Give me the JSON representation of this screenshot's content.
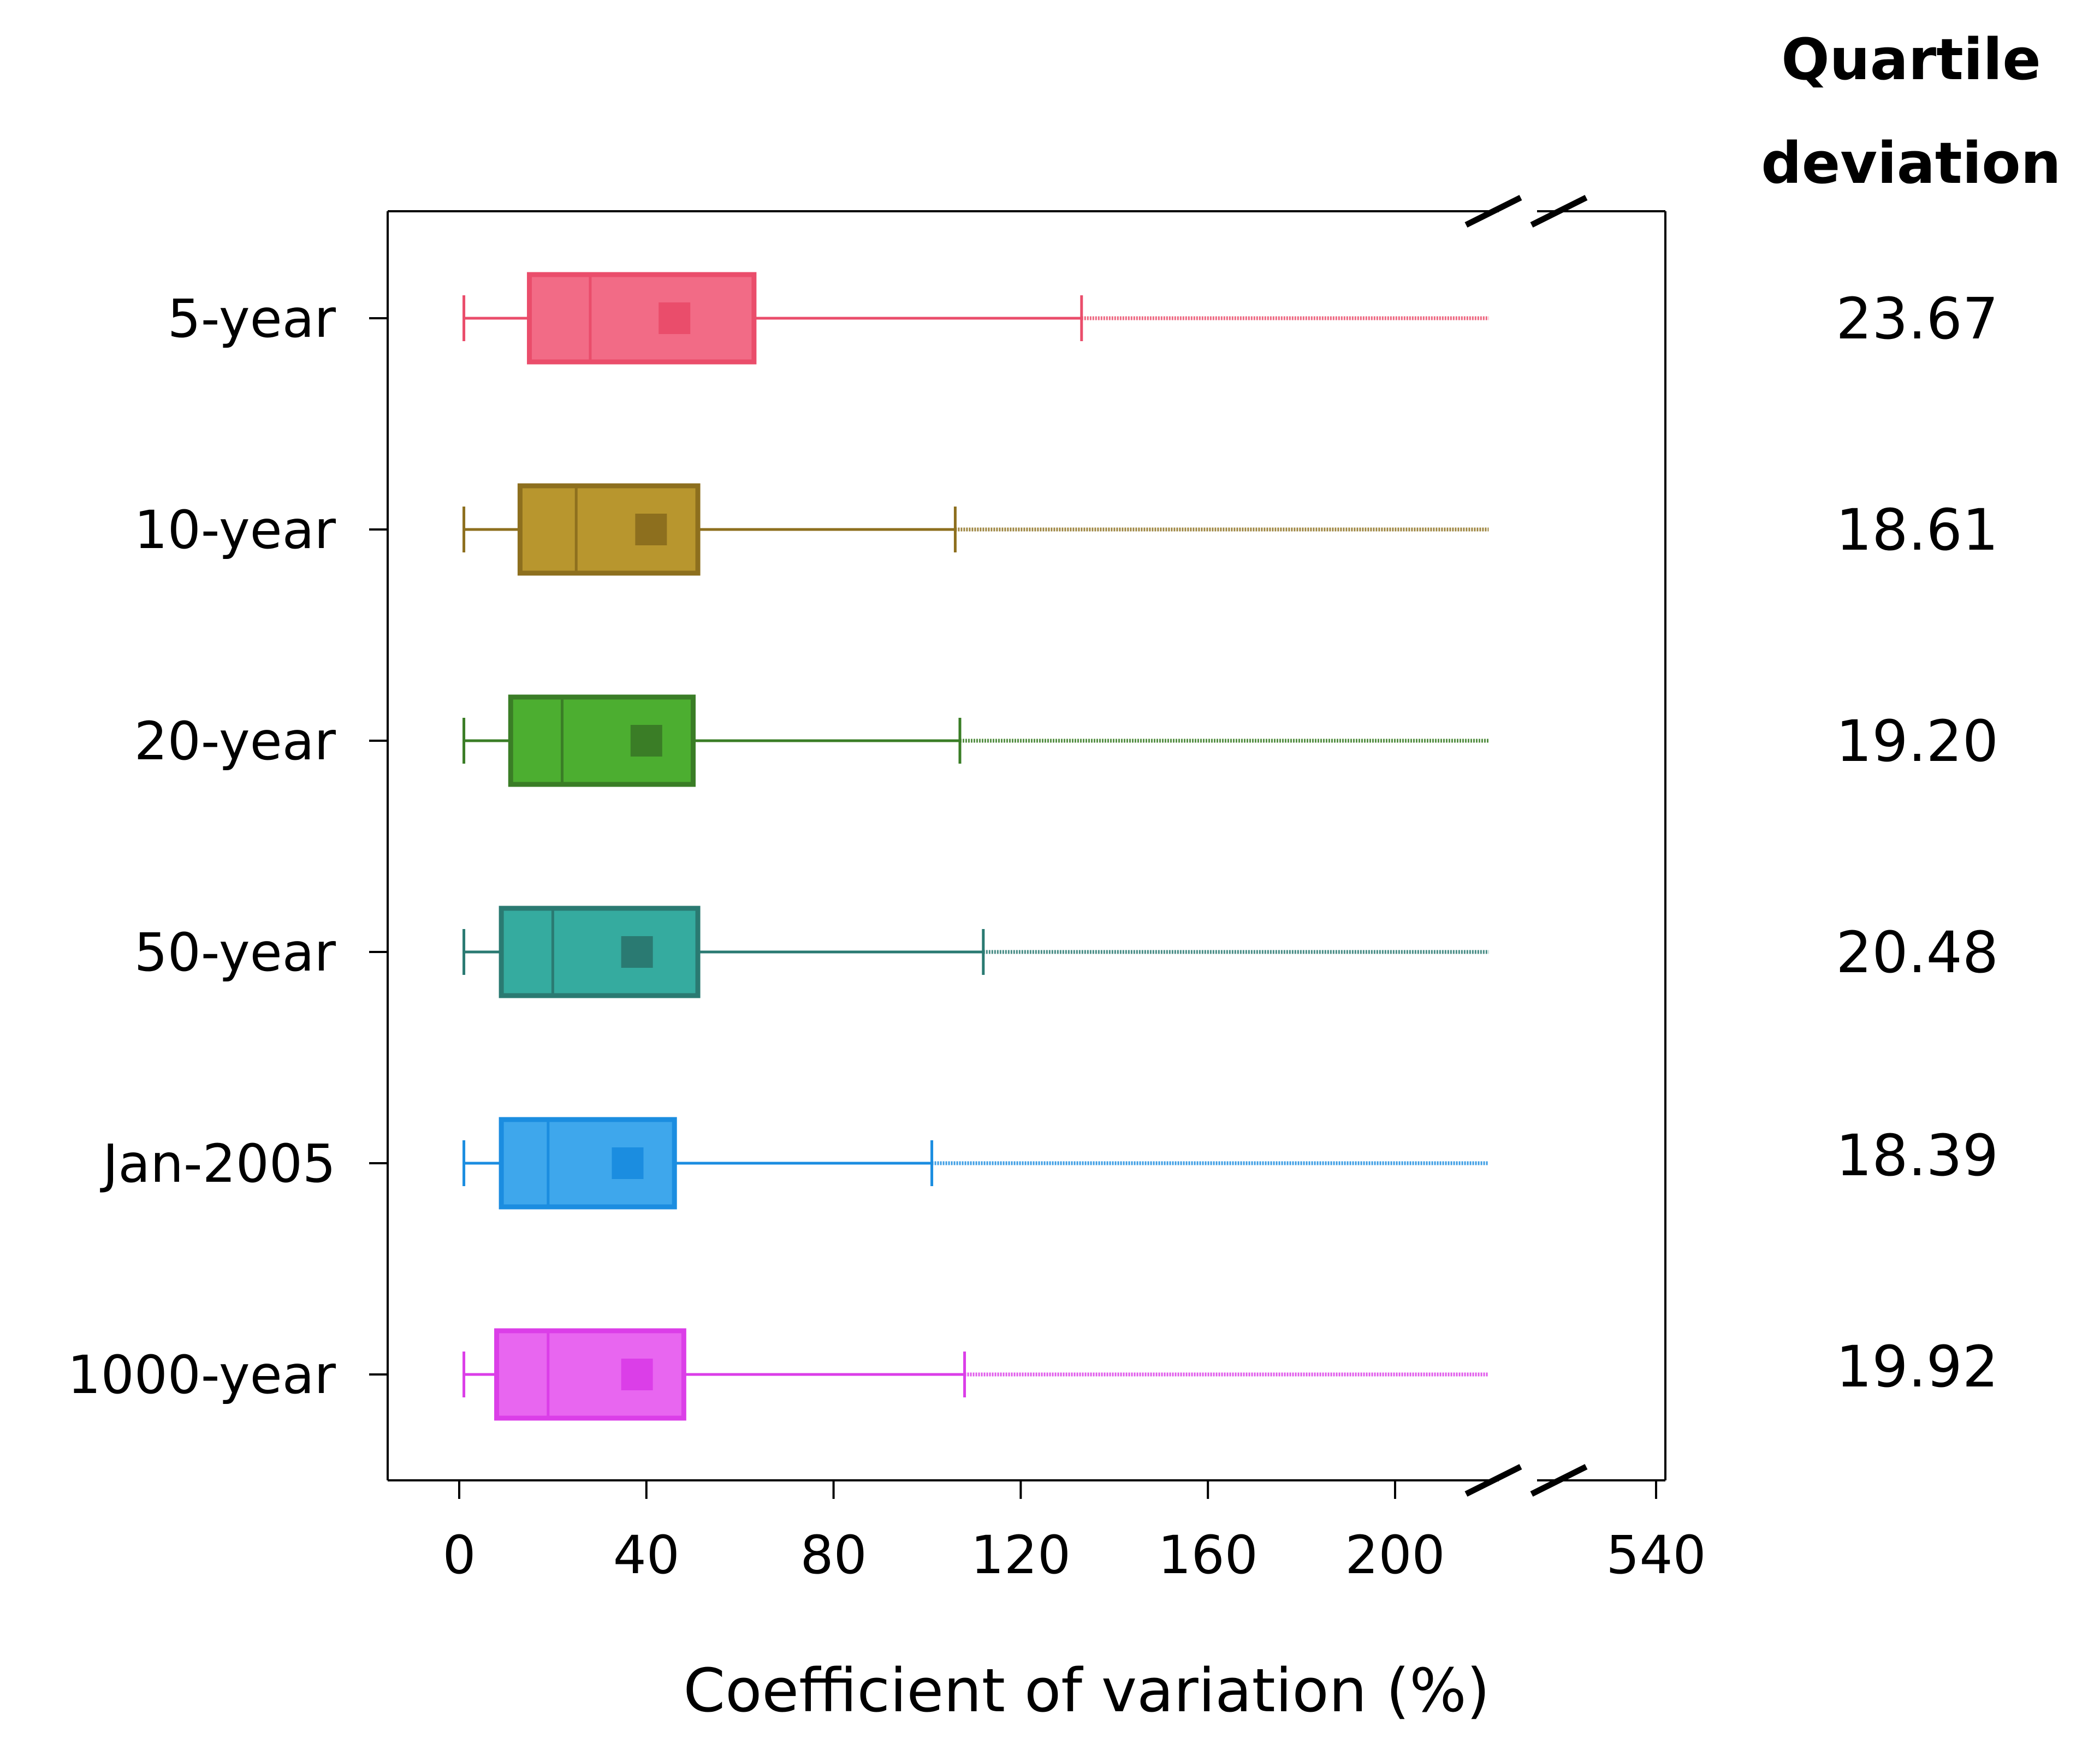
{
  "chart_data": {
    "type": "boxplot",
    "orientation": "horizontal",
    "xlabel": "Coefficient of variation (%)",
    "x_ticks": [
      "0",
      "40",
      "80",
      "120",
      "160",
      "200",
      "540"
    ],
    "x_axis_break": {
      "lower_range": [
        0,
        220
      ],
      "upper_tick": 540
    },
    "side_column_title": [
      "Quartile",
      "deviation"
    ],
    "series": [
      {
        "name": "5-year",
        "color": "#f26b86",
        "dark": "#ea4d6b",
        "whisker_low": 1,
        "q1": 15,
        "median": 28,
        "mean": 46,
        "q3": 63,
        "whisker_high": 133,
        "outliers_to": 220,
        "quartile_deviation": "23.67"
      },
      {
        "name": "10-year",
        "color": "#b8962e",
        "dark": "#8d6f1e",
        "whisker_low": 1,
        "q1": 13,
        "median": 25,
        "mean": 41,
        "q3": 51,
        "whisker_high": 106,
        "outliers_to": 220,
        "quartile_deviation": "18.61"
      },
      {
        "name": "20-year",
        "color": "#4cae30",
        "dark": "#3a7d26",
        "whisker_low": 1,
        "q1": 11,
        "median": 22,
        "mean": 40,
        "q3": 50,
        "whisker_high": 107,
        "outliers_to": 220,
        "quartile_deviation": "19.20"
      },
      {
        "name": "50-year",
        "color": "#35ab9f",
        "dark": "#2a7a72",
        "whisker_low": 1,
        "q1": 9,
        "median": 20,
        "mean": 38,
        "q3": 51,
        "whisker_high": 112,
        "outliers_to": 220,
        "quartile_deviation": "20.48"
      },
      {
        "name": "Jan-2005",
        "color": "#3ea7ec",
        "dark": "#1b8de0",
        "whisker_low": 1,
        "q1": 9,
        "median": 19,
        "mean": 36,
        "q3": 46,
        "whisker_high": 101,
        "outliers_to": 220,
        "quartile_deviation": "18.39"
      },
      {
        "name": "1000-year",
        "color": "#e866f0",
        "dark": "#db3ee8",
        "whisker_low": 1,
        "q1": 8,
        "median": 19,
        "mean": 38,
        "q3": 48,
        "whisker_high": 108,
        "outliers_to": 220,
        "quartile_deviation": "19.92"
      }
    ]
  }
}
